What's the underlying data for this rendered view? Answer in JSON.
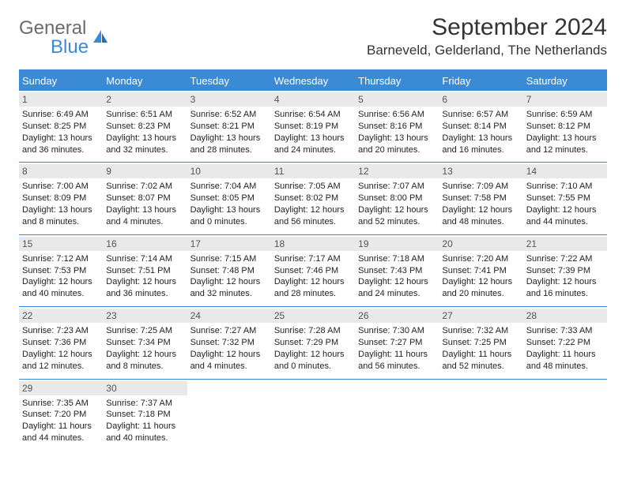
{
  "logo": {
    "word1": "General",
    "word2": "Blue"
  },
  "title": "September 2024",
  "location": "Barneveld, Gelderland, The Netherlands",
  "colors": {
    "accent": "#3a8ad6",
    "daynum_bg": "#e9e9e9"
  },
  "dow": [
    "Sunday",
    "Monday",
    "Tuesday",
    "Wednesday",
    "Thursday",
    "Friday",
    "Saturday"
  ],
  "weeks": [
    [
      {
        "n": "1",
        "sr": "6:49 AM",
        "ss": "8:25 PM",
        "dl": "13 hours and 36 minutes."
      },
      {
        "n": "2",
        "sr": "6:51 AM",
        "ss": "8:23 PM",
        "dl": "13 hours and 32 minutes."
      },
      {
        "n": "3",
        "sr": "6:52 AM",
        "ss": "8:21 PM",
        "dl": "13 hours and 28 minutes."
      },
      {
        "n": "4",
        "sr": "6:54 AM",
        "ss": "8:19 PM",
        "dl": "13 hours and 24 minutes."
      },
      {
        "n": "5",
        "sr": "6:56 AM",
        "ss": "8:16 PM",
        "dl": "13 hours and 20 minutes."
      },
      {
        "n": "6",
        "sr": "6:57 AM",
        "ss": "8:14 PM",
        "dl": "13 hours and 16 minutes."
      },
      {
        "n": "7",
        "sr": "6:59 AM",
        "ss": "8:12 PM",
        "dl": "13 hours and 12 minutes."
      }
    ],
    [
      {
        "n": "8",
        "sr": "7:00 AM",
        "ss": "8:09 PM",
        "dl": "13 hours and 8 minutes."
      },
      {
        "n": "9",
        "sr": "7:02 AM",
        "ss": "8:07 PM",
        "dl": "13 hours and 4 minutes."
      },
      {
        "n": "10",
        "sr": "7:04 AM",
        "ss": "8:05 PM",
        "dl": "13 hours and 0 minutes."
      },
      {
        "n": "11",
        "sr": "7:05 AM",
        "ss": "8:02 PM",
        "dl": "12 hours and 56 minutes."
      },
      {
        "n": "12",
        "sr": "7:07 AM",
        "ss": "8:00 PM",
        "dl": "12 hours and 52 minutes."
      },
      {
        "n": "13",
        "sr": "7:09 AM",
        "ss": "7:58 PM",
        "dl": "12 hours and 48 minutes."
      },
      {
        "n": "14",
        "sr": "7:10 AM",
        "ss": "7:55 PM",
        "dl": "12 hours and 44 minutes."
      }
    ],
    [
      {
        "n": "15",
        "sr": "7:12 AM",
        "ss": "7:53 PM",
        "dl": "12 hours and 40 minutes."
      },
      {
        "n": "16",
        "sr": "7:14 AM",
        "ss": "7:51 PM",
        "dl": "12 hours and 36 minutes."
      },
      {
        "n": "17",
        "sr": "7:15 AM",
        "ss": "7:48 PM",
        "dl": "12 hours and 32 minutes."
      },
      {
        "n": "18",
        "sr": "7:17 AM",
        "ss": "7:46 PM",
        "dl": "12 hours and 28 minutes."
      },
      {
        "n": "19",
        "sr": "7:18 AM",
        "ss": "7:43 PM",
        "dl": "12 hours and 24 minutes."
      },
      {
        "n": "20",
        "sr": "7:20 AM",
        "ss": "7:41 PM",
        "dl": "12 hours and 20 minutes."
      },
      {
        "n": "21",
        "sr": "7:22 AM",
        "ss": "7:39 PM",
        "dl": "12 hours and 16 minutes."
      }
    ],
    [
      {
        "n": "22",
        "sr": "7:23 AM",
        "ss": "7:36 PM",
        "dl": "12 hours and 12 minutes."
      },
      {
        "n": "23",
        "sr": "7:25 AM",
        "ss": "7:34 PM",
        "dl": "12 hours and 8 minutes."
      },
      {
        "n": "24",
        "sr": "7:27 AM",
        "ss": "7:32 PM",
        "dl": "12 hours and 4 minutes."
      },
      {
        "n": "25",
        "sr": "7:28 AM",
        "ss": "7:29 PM",
        "dl": "12 hours and 0 minutes."
      },
      {
        "n": "26",
        "sr": "7:30 AM",
        "ss": "7:27 PM",
        "dl": "11 hours and 56 minutes."
      },
      {
        "n": "27",
        "sr": "7:32 AM",
        "ss": "7:25 PM",
        "dl": "11 hours and 52 minutes."
      },
      {
        "n": "28",
        "sr": "7:33 AM",
        "ss": "7:22 PM",
        "dl": "11 hours and 48 minutes."
      }
    ],
    [
      {
        "n": "29",
        "sr": "7:35 AM",
        "ss": "7:20 PM",
        "dl": "11 hours and 44 minutes."
      },
      {
        "n": "30",
        "sr": "7:37 AM",
        "ss": "7:18 PM",
        "dl": "11 hours and 40 minutes."
      },
      {
        "empty": true
      },
      {
        "empty": true
      },
      {
        "empty": true
      },
      {
        "empty": true
      },
      {
        "empty": true
      }
    ]
  ],
  "labels": {
    "sunrise": "Sunrise: ",
    "sunset": "Sunset: ",
    "daylight": "Daylight: "
  }
}
